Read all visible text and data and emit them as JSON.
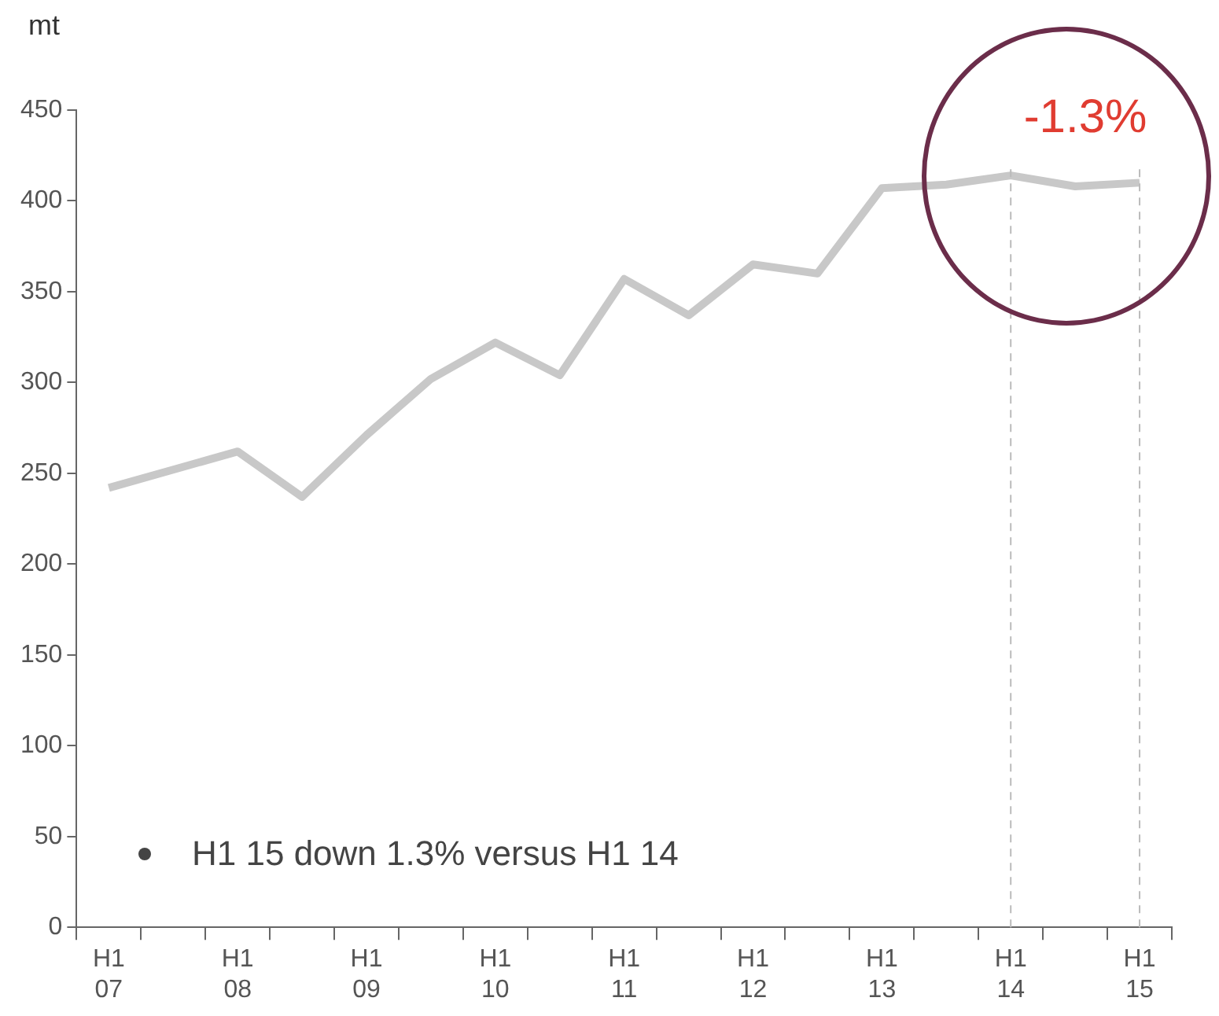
{
  "chart_data": {
    "type": "line",
    "ylabel": "mt",
    "categories": [
      "H1 07",
      null,
      "H1 08",
      null,
      "H1 09",
      null,
      "H1 10",
      null,
      "H1 11",
      null,
      "H1 12",
      null,
      "H1 13",
      null,
      "H1 14",
      null,
      "H1 15"
    ],
    "series": [
      {
        "color": "#c8c8c8",
        "values": [
          242,
          252,
          262,
          237,
          271,
          302,
          322,
          304,
          357,
          337,
          365,
          360,
          407,
          409,
          414,
          408,
          410
        ]
      }
    ],
    "ylim": [
      0,
      450
    ],
    "yticks": [
      0,
      50,
      100,
      150,
      200,
      250,
      300,
      350,
      400,
      450
    ],
    "ref_lines": [
      {
        "axis": "x",
        "value": "H1 14",
        "color": "#bbbbbb",
        "line_style": "dashed"
      },
      {
        "axis": "x",
        "value": "H1 15",
        "color": "#bbbbbb",
        "line_style": "dashed"
      }
    ],
    "annotations": [
      "-1.3%",
      "H1 15 down 1.3% versus H1 14"
    ],
    "grid": false,
    "legend": false,
    "marker": "none",
    "line_style": "solid"
  }
}
